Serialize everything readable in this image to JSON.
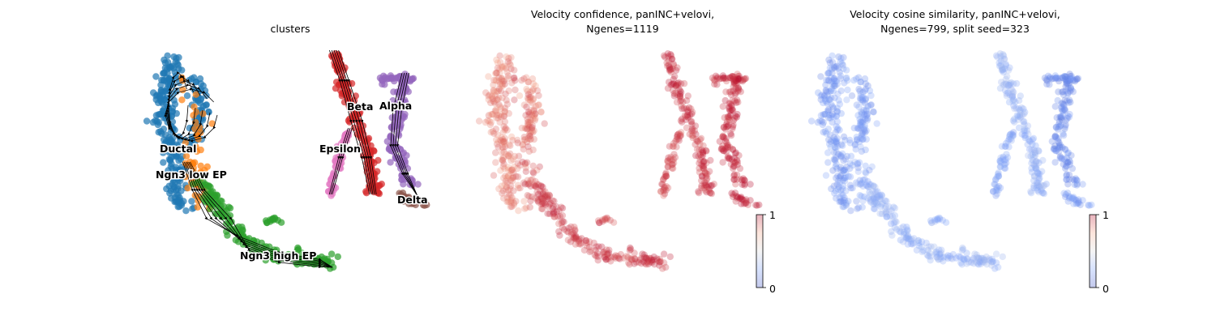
{
  "chart_data": [
    {
      "type": "scatter",
      "title": "clusters",
      "xlabel": "",
      "ylabel": "",
      "grid": false,
      "axes_visible": false,
      "streamlines": true,
      "clusters": [
        {
          "label": "Ductal",
          "color": "#1f77b4"
        },
        {
          "label": "Ngn3 low EP",
          "color": "#ff7f0e"
        },
        {
          "label": "Ngn3 high EP",
          "color": "#2ca02c"
        },
        {
          "label": "Beta",
          "color": "#d62728"
        },
        {
          "label": "Alpha",
          "color": "#9467bd"
        },
        {
          "label": "Epsilon",
          "color": "#e377c2"
        },
        {
          "label": "Delta",
          "color": "#8c564b"
        }
      ]
    },
    {
      "type": "scatter",
      "title_lines": [
        "Velocity confidence, panINC+velovi,",
        "Ngenes=1119"
      ],
      "xlabel": "",
      "ylabel": "",
      "grid": false,
      "axes_visible": false,
      "colormap": "coolwarm",
      "colorbar": {
        "vmin": 0,
        "vmax": 1,
        "ticks": [
          "0",
          "1"
        ]
      },
      "region_values": {
        "ductal": 0.82,
        "low_ep": 0.88,
        "high_ep": 0.92,
        "beta": 0.93,
        "alpha": 0.95,
        "epsilon": 0.9,
        "delta": 0.96
      }
    },
    {
      "type": "scatter",
      "title_lines": [
        "Velocity cosine similarity, panINC+velovi,",
        "Ngenes=799, split seed=323"
      ],
      "xlabel": "",
      "ylabel": "",
      "grid": false,
      "axes_visible": false,
      "colormap": "coolwarm",
      "colorbar": {
        "vmin": 0,
        "vmax": 1,
        "ticks": [
          "0",
          "1"
        ]
      },
      "region_values": {
        "ductal": 0.22,
        "low_ep": 0.25,
        "high_ep": 0.3,
        "beta": 0.3,
        "alpha": 0.18,
        "epsilon": 0.26,
        "delta": 0.22
      }
    }
  ]
}
